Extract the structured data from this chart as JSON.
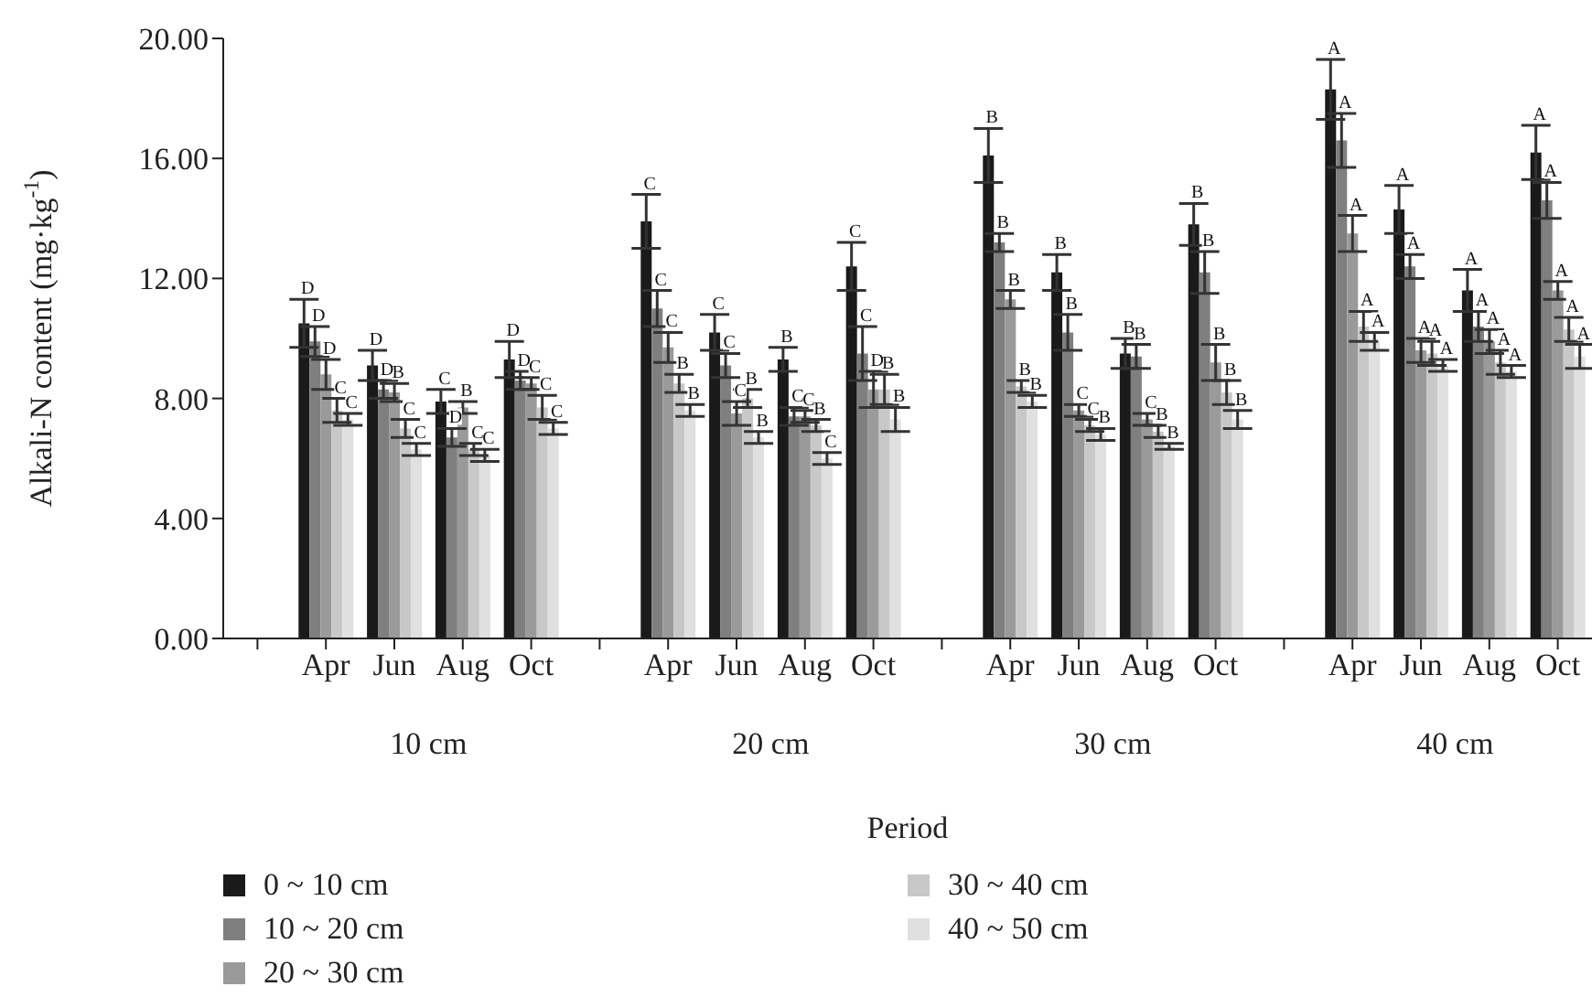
{
  "chart_data": {
    "type": "bar",
    "xlabel": "Period",
    "ylabel": "Alkali-N content (mg·kg$^{-1}$)",
    "categories": [
      null,
      "Apr",
      "Jun",
      "Aug",
      "Oct",
      null,
      "Apr",
      "Jun",
      "Aug",
      "Oct",
      null,
      "Apr",
      "Jun",
      "Aug",
      "Oct",
      null,
      "Apr",
      "Jun",
      "Aug",
      "Oct"
    ],
    "annotations": [
      "10 cm",
      "20 cm",
      "30 cm",
      "40 cm"
    ],
    "ylim": [
      0,
      20
    ],
    "yticks": [
      {
        "value": 0,
        "label": "0.00"
      },
      {
        "value": 4,
        "label": "4.00"
      },
      {
        "value": 8,
        "label": "8.00"
      },
      {
        "value": 12,
        "label": "12.00"
      },
      {
        "value": 16,
        "label": "16.00"
      },
      {
        "value": 20,
        "label": "20.00"
      }
    ],
    "grid": false,
    "legend": "bottom",
    "series": [
      {
        "name": "0 ~ 10 cm",
        "color": "#1a1a1a",
        "values": [
          null,
          10.5,
          9.1,
          7.9,
          9.3,
          null,
          13.9,
          10.2,
          9.3,
          12.4,
          null,
          16.1,
          12.2,
          9.5,
          13.8,
          null,
          18.3,
          14.3,
          11.6,
          16.2
        ],
        "errors": [
          null,
          0.8,
          0.5,
          0.4,
          0.6,
          null,
          0.9,
          0.6,
          0.4,
          0.8,
          null,
          0.9,
          0.6,
          0.5,
          0.7,
          null,
          1.0,
          0.8,
          0.7,
          0.9
        ],
        "value_labels": [
          null,
          "D",
          "D",
          "C",
          "D",
          null,
          "C",
          "C",
          "B",
          "C",
          null,
          "B",
          "B",
          "B",
          "B",
          null,
          "A",
          "A",
          "A",
          "A"
        ]
      },
      {
        "name": "10 ~ 20 cm",
        "color": "#7f7f7f",
        "values": [
          null,
          9.9,
          8.3,
          6.7,
          8.6,
          null,
          11.0,
          9.1,
          7.4,
          9.5,
          null,
          13.2,
          10.2,
          9.4,
          12.2,
          null,
          16.6,
          12.4,
          10.4,
          14.6
        ],
        "errors": [
          null,
          0.5,
          0.3,
          0.3,
          0.3,
          null,
          0.6,
          0.4,
          0.3,
          0.9,
          null,
          0.3,
          0.6,
          0.4,
          0.7,
          null,
          0.9,
          0.4,
          0.5,
          0.6
        ],
        "value_labels": [
          null,
          "D",
          "D",
          "D",
          "D",
          null,
          "C",
          "C",
          "C",
          "C",
          null,
          "B",
          "B",
          "B",
          "B",
          null,
          "A",
          "A",
          "A",
          "A"
        ]
      },
      {
        "name": "20 ~ 30 cm",
        "color": "#9a9a9a",
        "values": [
          null,
          8.8,
          8.2,
          7.7,
          8.5,
          null,
          9.7,
          7.5,
          7.4,
          8.3,
          null,
          11.3,
          7.6,
          7.3,
          9.2,
          null,
          13.5,
          9.6,
          9.9,
          11.6
        ],
        "errors": [
          null,
          0.5,
          0.3,
          0.2,
          0.2,
          null,
          0.5,
          0.4,
          0.2,
          0.6,
          null,
          0.3,
          0.2,
          0.2,
          0.6,
          null,
          0.6,
          0.4,
          0.4,
          0.3
        ],
        "value_labels": [
          null,
          "D",
          "B",
          "B",
          "C",
          null,
          "C",
          "C",
          "C",
          "D",
          null,
          "B",
          "C",
          "C",
          "B",
          null,
          "A",
          "A",
          "A",
          "A"
        ]
      },
      {
        "name": "30 ~ 40 cm",
        "color": "#c8c8c8",
        "values": [
          null,
          7.6,
          7.0,
          6.3,
          7.7,
          null,
          8.5,
          8.0,
          7.1,
          8.3,
          null,
          8.4,
          7.1,
          6.9,
          8.2,
          null,
          10.4,
          9.5,
          9.2,
          10.3
        ],
        "errors": [
          null,
          0.4,
          0.3,
          0.2,
          0.4,
          null,
          0.3,
          0.3,
          0.2,
          0.5,
          null,
          0.2,
          0.2,
          0.2,
          0.4,
          null,
          0.5,
          0.4,
          0.4,
          0.4
        ],
        "value_labels": [
          null,
          "C",
          "C",
          "C",
          "C",
          null,
          "B",
          "B",
          "B",
          "B",
          null,
          "B",
          "C",
          "B",
          "B",
          null,
          "A",
          "A",
          "A",
          "A"
        ]
      },
      {
        "name": "40 ~ 50 cm",
        "color": "#e0e0e0",
        "values": [
          null,
          7.3,
          6.3,
          6.1,
          7.0,
          null,
          7.6,
          6.7,
          6.0,
          7.3,
          null,
          7.9,
          6.8,
          6.4,
          7.3,
          null,
          9.9,
          9.1,
          8.9,
          9.4
        ],
        "errors": [
          null,
          0.2,
          0.2,
          0.2,
          0.2,
          null,
          0.2,
          0.2,
          0.2,
          0.4,
          null,
          0.2,
          0.2,
          0.1,
          0.3,
          null,
          0.3,
          0.2,
          0.2,
          0.4
        ],
        "value_labels": [
          null,
          "C",
          "C",
          "C",
          "C",
          null,
          "B",
          "B",
          "C",
          "B",
          null,
          "B",
          "B",
          "B",
          "B",
          null,
          "A",
          "A",
          "A",
          "A"
        ]
      }
    ]
  }
}
